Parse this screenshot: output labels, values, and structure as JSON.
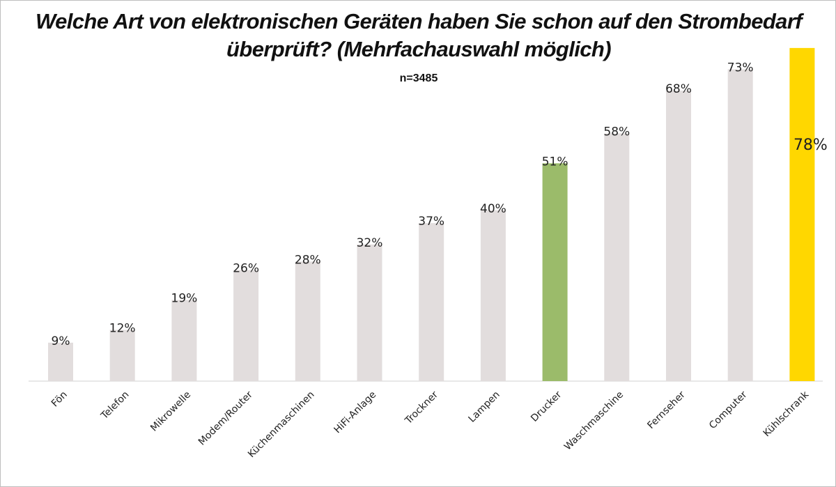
{
  "title_lines": [
    "Welche Art von elektronischen Geräten haben Sie schon auf den Strombedarf",
    "überprüft? (Mehrfachauswahl möglich)"
  ],
  "subtitle": "n=3485",
  "colors": {
    "default_bar": "#e2dddd",
    "drucker_bar": "#9bbb6a",
    "kuehlschrank_bar": "#ffd700",
    "axis": "#d0d0d0",
    "label_text": "#222222"
  },
  "chart_data": {
    "type": "bar",
    "title": "Welche Art von elektronischen Geräten haben Sie schon auf den Strombedarf überprüft? (Mehrfachauswahl möglich)",
    "subtitle": "n=3485",
    "categories": [
      "Fön",
      "Telefon",
      "Mikrowelle",
      "Modem/Router",
      "Küchenmaschinen",
      "HiFi-Anlage",
      "Trockner",
      "Lampen",
      "Drucker",
      "Waschmaschine",
      "Fernseher",
      "Computer",
      "Kühlschrank"
    ],
    "values": [
      9,
      12,
      19,
      26,
      28,
      32,
      37,
      40,
      51,
      58,
      68,
      73,
      78
    ],
    "value_labels": [
      "9%",
      "12%",
      "19%",
      "26%",
      "28%",
      "32%",
      "37%",
      "40%",
      "51%",
      "58%",
      "68%",
      "73%",
      "78%"
    ],
    "highlight": {
      "Drucker": "#9bbb6a",
      "Kühlschrank": "#ffd700"
    },
    "unit": "%",
    "ylim": [
      0,
      80
    ],
    "grid": false,
    "legend": "none"
  }
}
